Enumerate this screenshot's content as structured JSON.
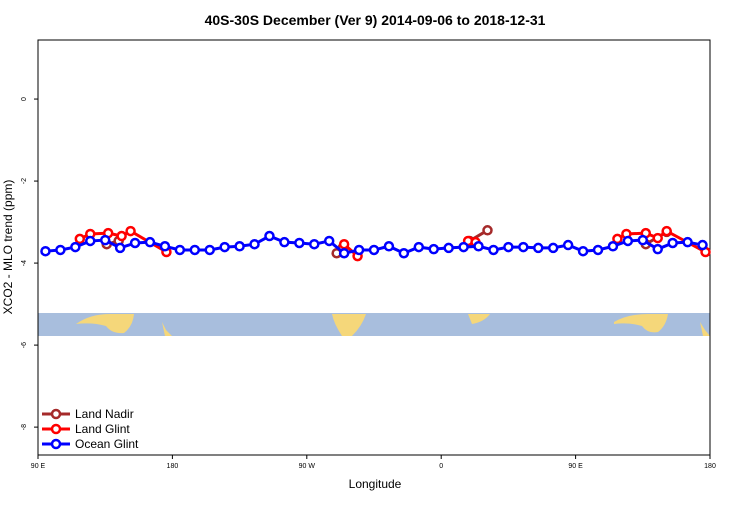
{
  "chart_data": {
    "type": "line",
    "title": "40S-30S December (Ver 9)   2014-09-06 to 2018-12-31",
    "x_label": "Longitude",
    "y_label": "XCO2 - MLO trend (ppm)",
    "xlim": [
      90,
      540
    ],
    "xticks": [
      {
        "value": 90,
        "label": "90 E"
      },
      {
        "value": 180,
        "label": "180"
      },
      {
        "value": 270,
        "label": "90 W"
      },
      {
        "value": 360,
        "label": "0"
      },
      {
        "value": 450,
        "label": "90 E"
      },
      {
        "value": 540,
        "label": "180"
      }
    ],
    "ylim": [
      -8.68,
      1.44
    ],
    "yticks": [
      0,
      -2,
      -4,
      -6,
      -8
    ],
    "legend": "bottom-left",
    "series": [
      {
        "name": "Land Nadir",
        "color": "#a52a2a",
        "x": [
          136,
          144,
          null,
          290,
          294,
          null,
          379,
          391,
          null,
          497,
          511
        ],
        "values": [
          -3.54,
          -3.46,
          null,
          -3.76,
          -3.63,
          null,
          -3.46,
          -3.2,
          null,
          -3.54,
          -3.24
        ]
      },
      {
        "name": "Land Glint",
        "color": "#ff0000",
        "x": [
          118,
          125,
          137,
          146,
          152,
          176,
          null,
          295,
          304,
          null,
          378,
          383,
          null,
          478,
          484,
          497,
          505,
          511,
          537
        ],
        "values": [
          -3.41,
          -3.29,
          -3.27,
          -3.34,
          -3.22,
          -3.73,
          null,
          -3.54,
          -3.83,
          null,
          -3.46,
          -3.49,
          null,
          -3.41,
          -3.29,
          -3.27,
          -3.39,
          -3.22,
          -3.73
        ]
      },
      {
        "name": "Ocean Glint",
        "color": "#0000ff",
        "x": [
          95,
          105,
          115,
          125,
          135,
          145,
          155,
          165,
          175,
          185,
          195,
          205,
          215,
          225,
          235,
          245,
          255,
          265,
          275,
          285,
          295,
          305,
          315,
          325,
          335,
          345,
          355,
          365,
          375,
          385,
          395,
          405,
          415,
          425,
          435,
          445,
          455,
          465,
          475,
          485,
          495,
          505,
          515,
          525,
          535
        ],
        "values": [
          -3.71,
          -3.68,
          -3.61,
          -3.46,
          -3.44,
          -3.63,
          -3.51,
          -3.49,
          -3.59,
          -3.68,
          -3.68,
          -3.68,
          -3.61,
          -3.59,
          -3.54,
          -3.34,
          -3.49,
          -3.51,
          -3.54,
          -3.46,
          -3.76,
          -3.68,
          -3.68,
          -3.59,
          -3.76,
          -3.61,
          -3.66,
          -3.63,
          -3.61,
          -3.59,
          -3.68,
          -3.61,
          -3.61,
          -3.63,
          -3.63,
          -3.56,
          -3.71,
          -3.68,
          -3.59,
          -3.46,
          -3.44,
          -3.66,
          -3.51,
          -3.49,
          -3.56
        ]
      }
    ]
  }
}
